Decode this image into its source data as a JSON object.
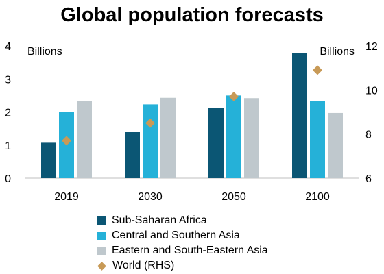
{
  "chart_data": {
    "type": "bar",
    "title": "Global population forecasts",
    "categories": [
      "2019",
      "2030",
      "2050",
      "2100"
    ],
    "y_left": {
      "unit_label": "Billions",
      "ticks": [
        0,
        1,
        2,
        3,
        4
      ],
      "ylim": [
        0,
        4
      ]
    },
    "y_right": {
      "unit_label": "Billions",
      "ticks": [
        6,
        8,
        10,
        12
      ],
      "ylim": [
        6,
        12
      ]
    },
    "series": [
      {
        "name": "Sub-Saharan Africa",
        "type": "bar",
        "axis": "left",
        "color": "#0b5674",
        "values": [
          1.07,
          1.4,
          2.12,
          3.78
        ]
      },
      {
        "name": "Central and Southern Asia",
        "type": "bar",
        "axis": "left",
        "color": "#25b1d8",
        "values": [
          2.01,
          2.23,
          2.5,
          2.34
        ]
      },
      {
        "name": "Eastern and South-Eastern Asia",
        "type": "bar",
        "axis": "left",
        "color": "#bfc8cd",
        "values": [
          2.34,
          2.43,
          2.42,
          1.97
        ]
      },
      {
        "name": "World (RHS)",
        "type": "marker",
        "marker": "diamond",
        "axis": "right",
        "color": "#c89a57",
        "values": [
          7.7,
          8.5,
          9.7,
          10.9
        ]
      }
    ],
    "grid": false,
    "legend_position": "bottom"
  }
}
